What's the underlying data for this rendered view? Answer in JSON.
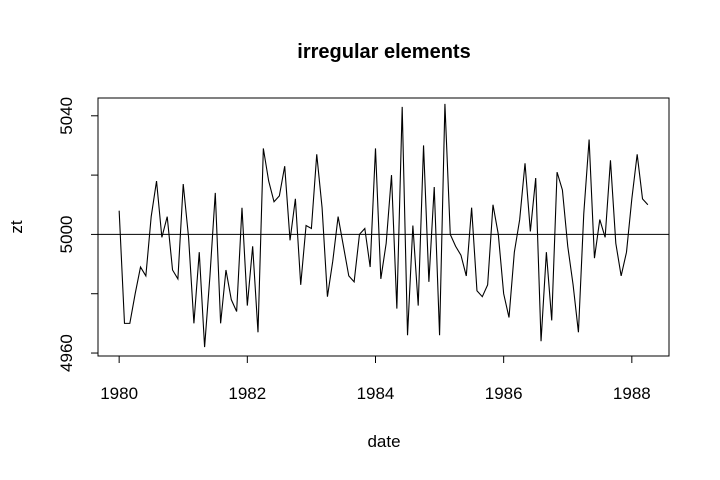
{
  "chart_data": {
    "type": "line",
    "title": "irregular elements",
    "xlabel": "date",
    "ylabel": "zt",
    "xlim": [
      1979.67,
      1988.58
    ],
    "ylim": [
      4959,
      5046
    ],
    "xticks": [
      1980,
      1982,
      1984,
      1986,
      1988
    ],
    "yticks": [
      4960,
      4980,
      5000,
      5020,
      5040
    ],
    "ytick_labels": [
      "4960",
      "",
      "5000",
      "",
      "5040"
    ],
    "reference_line": 5000,
    "grid": false,
    "series": [
      {
        "name": "",
        "x_start": 1980.0,
        "frequency": 12,
        "values": [
          5008,
          4970,
          4970,
          4980,
          4989,
          4986,
          5006,
          5018,
          4999,
          5006,
          4988,
          4985,
          5017,
          4999,
          4970,
          4994,
          4962,
          4986,
          5014,
          4970,
          4988,
          4978,
          4974,
          5009,
          4976,
          4996,
          4967,
          5029,
          5018,
          5011,
          5013,
          5023,
          4998,
          5012,
          4983,
          5003,
          5002,
          5027,
          5009,
          4979,
          4991,
          5006,
          4996,
          4986,
          4984,
          5000,
          5002,
          4989,
          5029,
          4985,
          4997,
          5020,
          4975,
          5043,
          4966,
          5003,
          4976,
          5030,
          4984,
          5016,
          4966,
          5044,
          5000,
          4996,
          4993,
          4986,
          5009,
          4981,
          4979,
          4983,
          5010,
          5000,
          4980,
          4972,
          4994,
          5005,
          5024,
          5001,
          5019,
          4964,
          4994,
          4971,
          5021,
          5015,
          4996,
          4983,
          4967,
          5007,
          5032,
          4992,
          5005,
          4999,
          5025,
          4997,
          4986,
          4994,
          5012,
          5027,
          5012,
          5010
        ]
      }
    ]
  }
}
